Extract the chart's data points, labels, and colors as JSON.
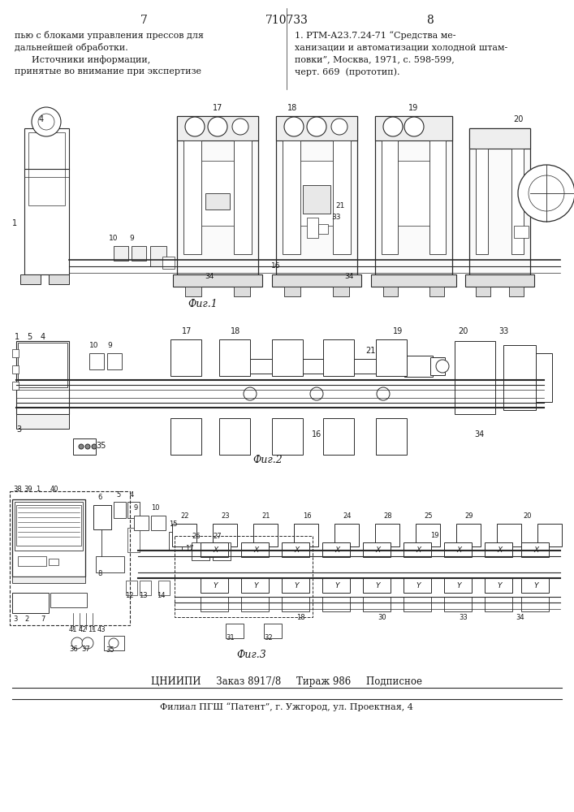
{
  "page_numbers": [
    "7",
    "8"
  ],
  "patent_number": "710733",
  "left_text": [
    "пью с блоками управления прессов для",
    "дальнейшей обработки.",
    "      Источники информации,",
    "принятые во внимание при экспертизе"
  ],
  "right_text": [
    "1. РТМ-А23.7.24-71 “Средства ме-",
    "ханизации и автоматизации холодной штам-",
    "повки”, Москва, 1971, с. 598-599,",
    "черт. 669  (прототип)."
  ],
  "fig1_caption": "Фиг.1",
  "fig2_caption": "Фиг.2",
  "fig3_caption": "Фиг.3",
  "footer_line1": "ЦНИИПИ     Заказ 8917/8     Тираж 986     Подписное",
  "footer_line2": "Филиал ПГШ “Патент”, г. Ужгород, ул. Проектная, 4",
  "bg_color": "#ffffff",
  "text_color": "#1a1a1a",
  "line_color": "#2a2a2a"
}
